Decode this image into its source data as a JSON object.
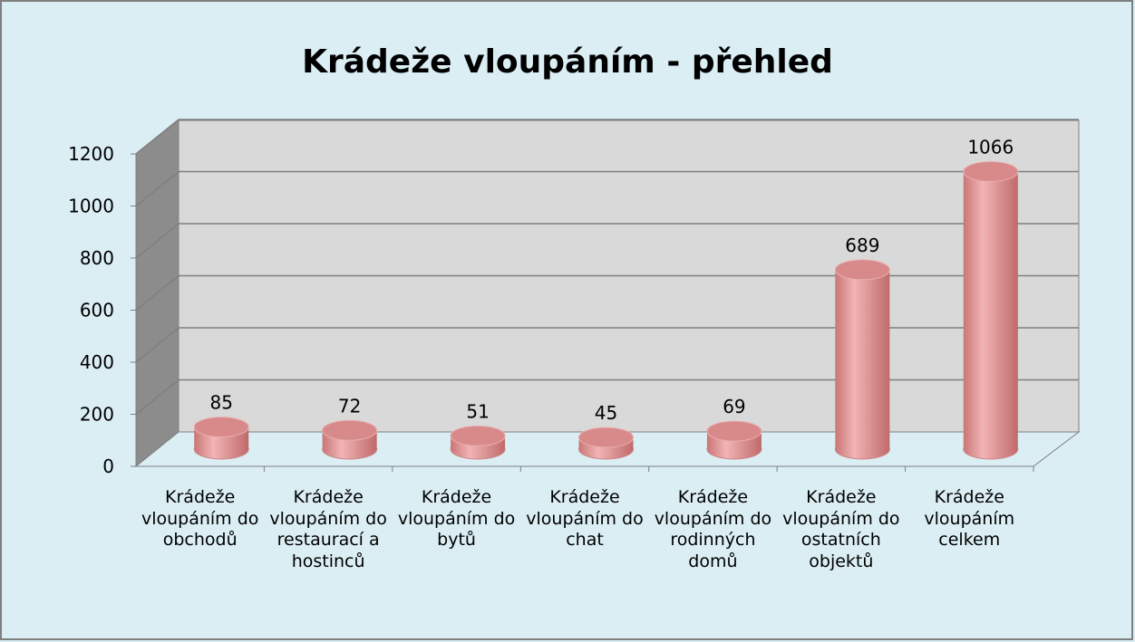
{
  "chart_data": {
    "type": "bar3d",
    "title": "Krádeže vloupáním - přehled",
    "categories": [
      "Krádeže vloupáním do obchodů",
      "Krádeže vloupáním do restaurací a hostinců",
      "Krádeže vloupáním do bytů",
      "Krádeže vloupáním do chat",
      "Krádeže vloupáním do rodinných domů",
      "Krádeže vloupáním do ostatních objektů",
      "Krádeže vloupáním celkem"
    ],
    "values": [
      85,
      72,
      51,
      45,
      69,
      689,
      1066
    ],
    "color": "#e09898",
    "ylim": [
      0,
      1200
    ],
    "yticks": [
      0,
      200,
      400,
      600,
      800,
      1000,
      1200
    ],
    "grid": true
  }
}
